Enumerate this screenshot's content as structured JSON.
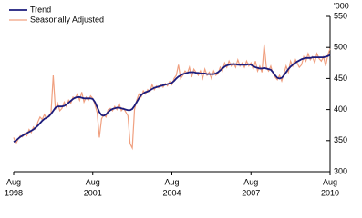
{
  "chart_data": {
    "type": "line",
    "y_unit": "'000",
    "x": [
      "1998-08",
      "1998-09",
      "1998-10",
      "1998-11",
      "1998-12",
      "1999-01",
      "1999-02",
      "1999-03",
      "1999-04",
      "1999-05",
      "1999-06",
      "1999-07",
      "1999-08",
      "1999-09",
      "1999-10",
      "1999-11",
      "1999-12",
      "2000-01",
      "2000-02",
      "2000-03",
      "2000-04",
      "2000-05",
      "2000-06",
      "2000-07",
      "2000-08",
      "2000-09",
      "2000-10",
      "2000-11",
      "2000-12",
      "2001-01",
      "2001-02",
      "2001-03",
      "2001-04",
      "2001-05",
      "2001-06",
      "2001-07",
      "2001-08",
      "2001-09",
      "2001-10",
      "2001-11",
      "2001-12",
      "2002-01",
      "2002-02",
      "2002-03",
      "2002-04",
      "2002-05",
      "2002-06",
      "2002-07",
      "2002-08",
      "2002-09",
      "2002-10",
      "2002-11",
      "2002-12",
      "2003-01",
      "2003-02",
      "2003-03",
      "2003-04",
      "2003-05",
      "2003-06",
      "2003-07",
      "2003-08",
      "2003-09",
      "2003-10",
      "2003-11",
      "2003-12",
      "2004-01",
      "2004-02",
      "2004-03",
      "2004-04",
      "2004-05",
      "2004-06",
      "2004-07",
      "2004-08",
      "2004-09",
      "2004-10",
      "2004-11",
      "2004-12",
      "2005-01",
      "2005-02",
      "2005-03",
      "2005-04",
      "2005-05",
      "2005-06",
      "2005-07",
      "2005-08",
      "2005-09",
      "2005-10",
      "2005-11",
      "2005-12",
      "2006-01",
      "2006-02",
      "2006-03",
      "2006-04",
      "2006-05",
      "2006-06",
      "2006-07",
      "2006-08",
      "2006-09",
      "2006-10",
      "2006-11",
      "2006-12",
      "2007-01",
      "2007-02",
      "2007-03",
      "2007-04",
      "2007-05",
      "2007-06",
      "2007-07",
      "2007-08",
      "2007-09",
      "2007-10",
      "2007-11",
      "2007-12",
      "2008-01",
      "2008-02",
      "2008-03",
      "2008-04",
      "2008-05",
      "2008-06",
      "2008-07",
      "2008-08",
      "2008-09",
      "2008-10",
      "2008-11",
      "2008-12",
      "2009-01",
      "2009-02",
      "2009-03",
      "2009-04",
      "2009-05",
      "2009-06",
      "2009-07",
      "2009-08",
      "2009-09",
      "2009-10",
      "2009-11",
      "2009-12",
      "2010-01",
      "2010-02",
      "2010-03",
      "2010-04",
      "2010-05",
      "2010-06",
      "2010-07",
      "2010-08"
    ],
    "series": [
      {
        "name": "Trend",
        "color": "#1c1c7c",
        "values": [
          348,
          350,
          353,
          356,
          358,
          360,
          362,
          364,
          366,
          368,
          371,
          374,
          378,
          382,
          385,
          387,
          389,
          393,
          398,
          403,
          405,
          405,
          405,
          406,
          408,
          411,
          414,
          417,
          419,
          420,
          420,
          419,
          418,
          418,
          418,
          418,
          417,
          412,
          404,
          396,
          391,
          390,
          392,
          396,
          399,
          401,
          402,
          403,
          403,
          402,
          401,
          400,
          399,
          399,
          401,
          406,
          412,
          418,
          423,
          426,
          428,
          429,
          431,
          433,
          435,
          436,
          437,
          438,
          439,
          440,
          441,
          442,
          443,
          446,
          450,
          453,
          455,
          457,
          458,
          459,
          460,
          460,
          460,
          459,
          459,
          458,
          458,
          458,
          457,
          457,
          457,
          457,
          458,
          460,
          463,
          466,
          469,
          471,
          472,
          473,
          473,
          473,
          472,
          472,
          472,
          472,
          472,
          473,
          472,
          470,
          468,
          467,
          466,
          466,
          467,
          466,
          465,
          464,
          460,
          455,
          451,
          450,
          451,
          455,
          460,
          465,
          469,
          472,
          475,
          477,
          479,
          481,
          482,
          483,
          483,
          483,
          484,
          484,
          484,
          484,
          484,
          484,
          485,
          486,
          488
        ]
      },
      {
        "name": "Seasonally Adjusted",
        "color": "#f0a080",
        "values": [
          355,
          345,
          352,
          358,
          356,
          362,
          358,
          368,
          363,
          372,
          368,
          380,
          388,
          384,
          392,
          385,
          390,
          395,
          455,
          400,
          410,
          398,
          402,
          412,
          405,
          415,
          410,
          420,
          418,
          425,
          415,
          428,
          412,
          420,
          415,
          422,
          418,
          408,
          395,
          355,
          385,
          392,
          388,
          400,
          402,
          398,
          405,
          400,
          410,
          398,
          402,
          396,
          390,
          345,
          338,
          400,
          415,
          425,
          420,
          430,
          425,
          432,
          428,
          440,
          432,
          438,
          435,
          440,
          436,
          442,
          438,
          445,
          440,
          450,
          455,
          472,
          450,
          455,
          462,
          458,
          468,
          452,
          465,
          460,
          455,
          462,
          450,
          465,
          455,
          460,
          450,
          462,
          455,
          458,
          468,
          462,
          475,
          468,
          478,
          470,
          475,
          468,
          480,
          470,
          475,
          468,
          478,
          470,
          475,
          465,
          478,
          462,
          470,
          460,
          505,
          468,
          462,
          470,
          458,
          452,
          448,
          455,
          446,
          458,
          470,
          460,
          478,
          470,
          482,
          475,
          468,
          472,
          485,
          478,
          490,
          480,
          485,
          475,
          490,
          482,
          478,
          485,
          470,
          488,
          498
        ]
      }
    ],
    "xlim": [
      "1998-08",
      "2010-08"
    ],
    "xticks": [
      {
        "value": "1998-08",
        "label": [
          "Aug",
          "1998"
        ]
      },
      {
        "value": "2001-08",
        "label": [
          "Aug",
          "2001"
        ]
      },
      {
        "value": "2004-08",
        "label": [
          "Aug",
          "2004"
        ]
      },
      {
        "value": "2007-08",
        "label": [
          "Aug",
          "2007"
        ]
      },
      {
        "value": "2010-08",
        "label": [
          "Aug",
          "2010"
        ]
      }
    ],
    "ylim": [
      300,
      550
    ],
    "yticks": [
      300,
      350,
      400,
      450,
      500,
      550
    ],
    "legend": "top-left"
  }
}
